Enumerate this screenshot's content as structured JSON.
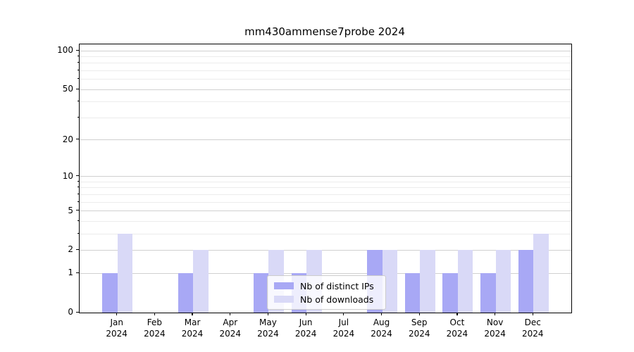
{
  "title": "mm430ammense7probe 2024",
  "chart_data": {
    "type": "bar",
    "title": "mm430ammense7probe 2024",
    "categories": [
      "Jan 2024",
      "Feb 2024",
      "Mar 2024",
      "Apr 2024",
      "May 2024",
      "Jun 2024",
      "Jul 2024",
      "Aug 2024",
      "Sep 2024",
      "Oct 2024",
      "Nov 2024",
      "Dec 2024"
    ],
    "series": [
      {
        "name": "Nb of distinct IPs",
        "color": "#a8a8f5",
        "values": [
          1,
          0,
          1,
          0,
          1,
          1,
          0,
          2,
          1,
          1,
          1,
          2
        ]
      },
      {
        "name": "Nb of downloads",
        "color": "#d9d9f7",
        "values": [
          3,
          0,
          2,
          0,
          2,
          2,
          0,
          2,
          2,
          2,
          2,
          3
        ]
      }
    ],
    "xlabel": "",
    "ylabel": "",
    "yscale": "log1p",
    "ylim": [
      0,
      112
    ],
    "ytick_labels": [
      "0",
      "1",
      "2",
      "5",
      "10",
      "20",
      "50",
      "100"
    ],
    "ytick_values": [
      0,
      1,
      2,
      5,
      10,
      20,
      50,
      100
    ],
    "minor_ytick_values": [
      3,
      4,
      6,
      7,
      8,
      9,
      30,
      40,
      60,
      70,
      80,
      90
    ],
    "grid": "both",
    "legend_position": "lower center",
    "colors": {
      "axis": "#000000",
      "grid_major": "#d0d0d0",
      "grid_minor": "#ececec",
      "background": "#ffffff",
      "text": "#000000"
    }
  }
}
